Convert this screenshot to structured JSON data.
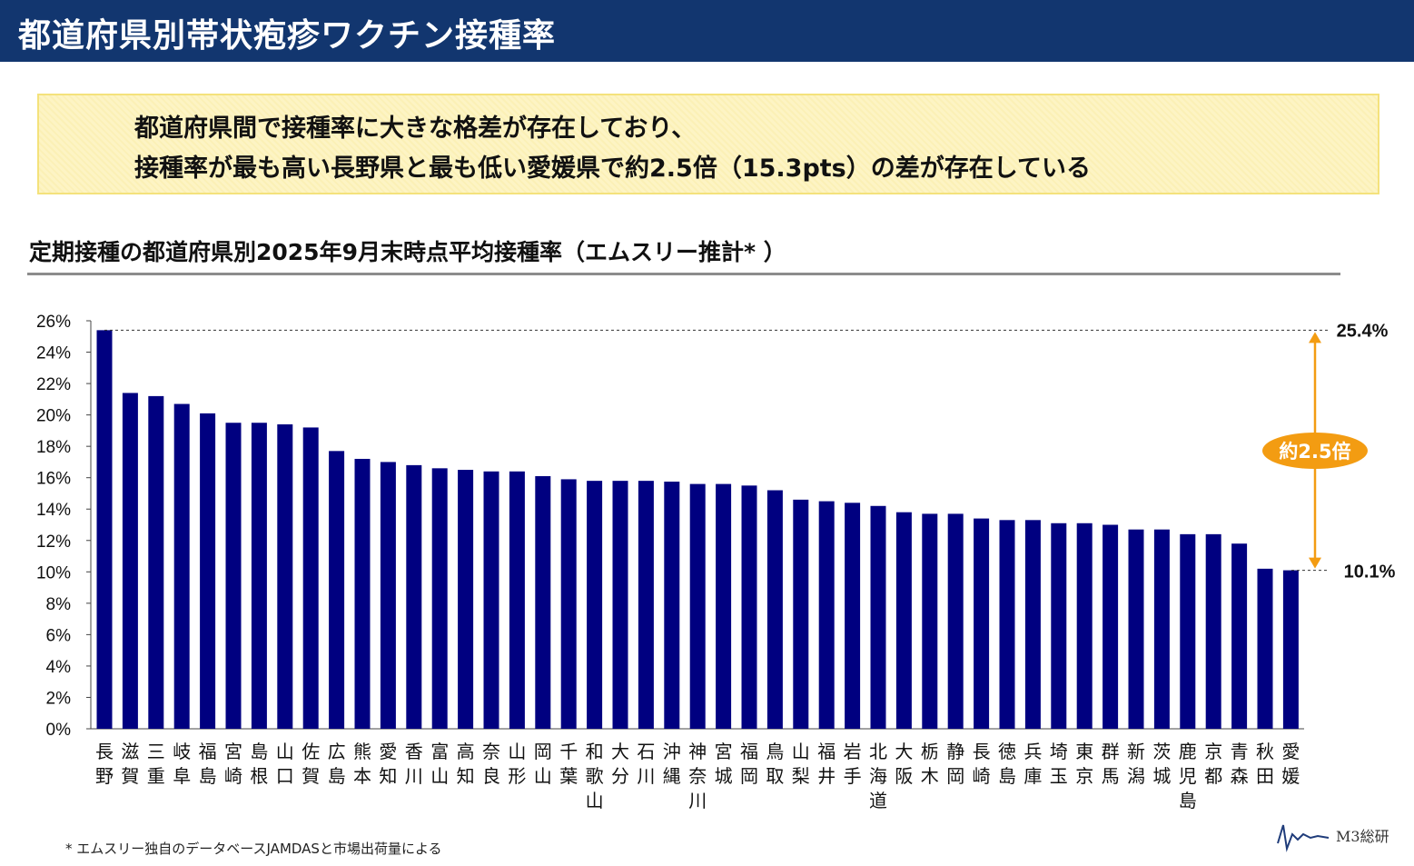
{
  "header": {
    "title": "都道府県別帯状疱疹ワクチン接種率"
  },
  "callout": {
    "line1": "都道府県間で接種率に大きな格差が存在しており、",
    "line2": "接種率が最も高い長野県と最も低い愛媛県で約2.5倍（15.3pts）の差が存在している"
  },
  "chart_subtitle": "定期接種の都道府県別2025年9月末時点平均接種率（エムスリー推計* ）",
  "footnote": "* エムスリー独自のデータベースJAMDASと市場出荷量による",
  "logo": {
    "text": "M3総研"
  },
  "chart_data": {
    "type": "bar",
    "title": "定期接種の都道府県別2025年9月末時点平均接種率（エムスリー推計* ）",
    "ylim": [
      0,
      26
    ],
    "yticks": [
      "0%",
      "2%",
      "4%",
      "6%",
      "8%",
      "10%",
      "12%",
      "14%",
      "16%",
      "18%",
      "20%",
      "22%",
      "24%",
      "26%"
    ],
    "bar_color": "#000080",
    "categories": [
      "長野",
      "滋賀",
      "三重",
      "岐阜",
      "福島",
      "宮崎",
      "島根",
      "山口",
      "佐賀",
      "広島",
      "熊本",
      "愛知",
      "香川",
      "富山",
      "高知",
      "奈良",
      "山形",
      "岡山",
      "千葉",
      "和歌山",
      "大分",
      "石川",
      "沖縄",
      "神奈川",
      "宮城",
      "福岡",
      "鳥取",
      "山梨",
      "福井",
      "岩手",
      "北海道",
      "大阪",
      "栃木",
      "静岡",
      "長崎",
      "徳島",
      "兵庫",
      "埼玉",
      "東京",
      "群馬",
      "新潟",
      "茨城",
      "鹿児島",
      "京都",
      "青森",
      "秋田",
      "愛媛"
    ],
    "values": [
      25.4,
      21.4,
      21.2,
      20.7,
      20.1,
      19.5,
      19.5,
      19.4,
      19.2,
      17.7,
      17.2,
      17.0,
      16.8,
      16.6,
      16.5,
      16.4,
      16.4,
      16.1,
      15.9,
      15.8,
      15.8,
      15.8,
      15.75,
      15.6,
      15.6,
      15.5,
      15.2,
      14.6,
      14.5,
      14.4,
      14.2,
      13.8,
      13.7,
      13.7,
      13.4,
      13.3,
      13.3,
      13.1,
      13.1,
      13.0,
      12.7,
      12.7,
      12.4,
      12.4,
      11.8,
      10.2,
      10.1
    ],
    "annotations": {
      "max_label": "25.4%",
      "min_label": "10.1%",
      "ratio_label": "約2.5倍",
      "accent_color": "#f39c12"
    }
  }
}
